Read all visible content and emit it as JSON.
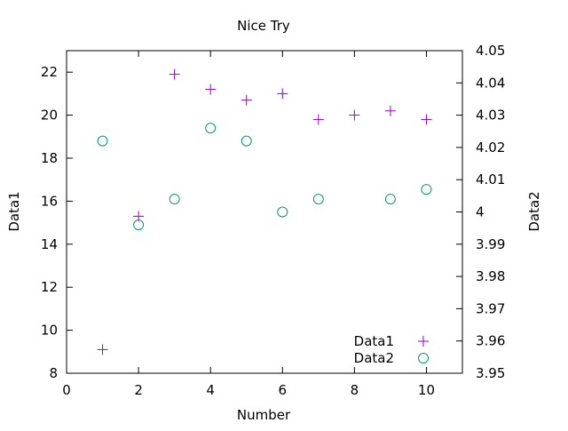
{
  "chart_data": {
    "type": "scatter",
    "title": "Nice Try",
    "xlabel": "Number",
    "ylabel": "Data1",
    "y2label": "Data2",
    "xlim": [
      0,
      11
    ],
    "ylim": [
      8,
      23
    ],
    "y2lim": [
      3.95,
      4.05
    ],
    "x_ticks": [
      0,
      2,
      4,
      6,
      8,
      10
    ],
    "y_ticks": [
      8,
      10,
      12,
      14,
      16,
      18,
      20,
      22
    ],
    "y2_ticks": [
      "3.95",
      "3.96",
      "3.97",
      "3.98",
      "3.99",
      "4",
      "4.01",
      "4.02",
      "4.03",
      "4.04",
      "4.05"
    ],
    "grid": false,
    "legend_position": "bottom-right",
    "series": [
      {
        "name": "Data1",
        "axis": "left",
        "marker": "plus",
        "color": "#9400d3",
        "points": [
          [
            1,
            9.1
          ],
          [
            2,
            15.3
          ],
          [
            3,
            21.9
          ],
          [
            4,
            21.2
          ],
          [
            5,
            20.7
          ],
          [
            6,
            21.0
          ],
          [
            7,
            19.8
          ],
          [
            8,
            20.0
          ],
          [
            9,
            20.2
          ],
          [
            10,
            19.8
          ]
        ]
      },
      {
        "name": "Data2",
        "axis": "right",
        "marker": "circle",
        "color": "#009e73",
        "points": [
          [
            1,
            4.022
          ],
          [
            2,
            3.996
          ],
          [
            3,
            4.004
          ],
          [
            4,
            4.026
          ],
          [
            5,
            4.022
          ],
          [
            6,
            4.0
          ],
          [
            7,
            4.004
          ],
          [
            9,
            4.004
          ],
          [
            10,
            4.007
          ]
        ]
      }
    ]
  }
}
